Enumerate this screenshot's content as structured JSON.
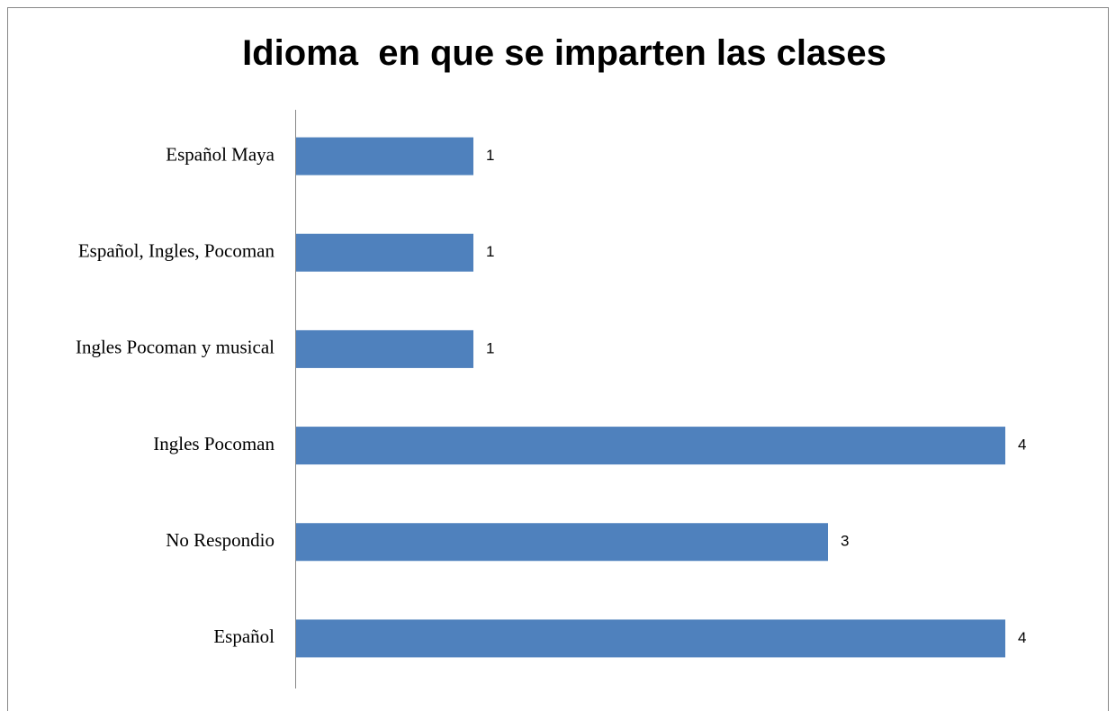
{
  "chart_data": {
    "type": "barh",
    "title": "Idioma  en que se imparten las clases",
    "categories": [
      "Español Maya",
      "Español, Ingles, Pocoman",
      "Ingles Pocoman y musical",
      "Ingles Pocoman",
      "No Respondio",
      "Español"
    ],
    "values": [
      1,
      1,
      1,
      4,
      3,
      4
    ],
    "color": "#4f81bd",
    "grid": false
  }
}
